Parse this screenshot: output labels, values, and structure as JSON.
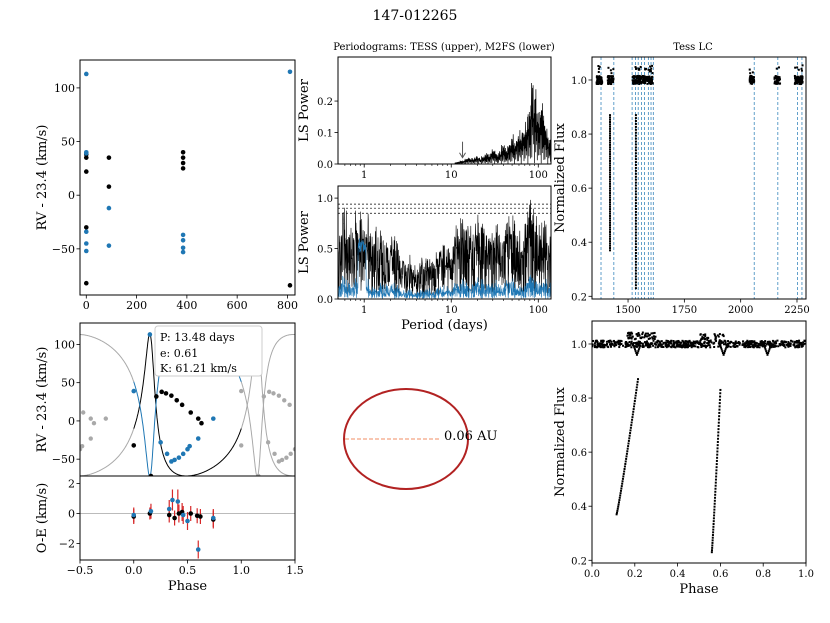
{
  "figure": {
    "title": "147-012265",
    "periodogram_title": "Periodograms: TESS (upper), M2FS (lower)",
    "lc_title": "Tess LC",
    "orbit_label": "0.06 AU",
    "fit_params": [
      "P: 13.48 days",
      "e: 0.61",
      "K: 61.21 km/s"
    ]
  },
  "colors": {
    "rv_black": "#000000",
    "rv_blue": "#1f77b4",
    "model_grey": "#a9a9a9",
    "errorbar_red": "#d62728",
    "orbit_red": "#b22222",
    "orbit_line": "#f4a582",
    "vline_blue": "#1f77b4",
    "hline_grey": "#bbbbbb"
  },
  "chart_data": [
    {
      "id": "rv_time",
      "type": "scatter",
      "xlabel": "",
      "ylabel": "RV - 23.4 (km/s)",
      "xlim": [
        -25,
        830
      ],
      "ylim": [
        -93,
        126
      ],
      "xticks": [
        0,
        200,
        400,
        600,
        800
      ],
      "yticks": [
        -50,
        0,
        50,
        100
      ],
      "series": [
        {
          "name": "black",
          "color": "#000000",
          "points": [
            [
              0,
              -82
            ],
            [
              0,
              -30
            ],
            [
              0,
              22
            ],
            [
              0,
              35
            ],
            [
              0,
              38
            ],
            [
              90,
              35
            ],
            [
              90,
              8
            ],
            [
              385,
              25
            ],
            [
              385,
              30
            ],
            [
              385,
              35
            ],
            [
              385,
              40
            ],
            [
              810,
              -84
            ]
          ]
        },
        {
          "name": "blue",
          "color": "#1f77b4",
          "points": [
            [
              0,
              113
            ],
            [
              0,
              40
            ],
            [
              0,
              39
            ],
            [
              0,
              -34
            ],
            [
              0,
              -45
            ],
            [
              0,
              -52
            ],
            [
              90,
              -12
            ],
            [
              90,
              -47
            ],
            [
              385,
              -37
            ],
            [
              385,
              -42
            ],
            [
              385,
              -49
            ],
            [
              385,
              -53
            ],
            [
              810,
              115
            ]
          ]
        }
      ]
    },
    {
      "id": "rv_phase",
      "type": "line",
      "xlabel": "",
      "ylabel": "RV - 23.4 (km/s)",
      "xlim": [
        -0.5,
        1.5
      ],
      "ylim": [
        -72,
        128
      ],
      "xticks": [],
      "yticks": [
        -50,
        0,
        50,
        100
      ],
      "model": {
        "P_days": 13.48,
        "e": 0.61,
        "K_kms": 61.21,
        "omega_deg": 20,
        "phase_offset": 0.16
      },
      "series": [
        {
          "name": "black",
          "color": "#000000",
          "points": [
            [
              0.0,
              -32
            ],
            [
              0.16,
              -72
            ],
            [
              0.21,
              32
            ],
            [
              0.26,
              38
            ],
            [
              0.3,
              36
            ],
            [
              0.35,
              33
            ],
            [
              0.4,
              27
            ],
            [
              0.45,
              21
            ],
            [
              0.53,
              11
            ],
            [
              0.6,
              3
            ],
            [
              0.63,
              -3
            ]
          ]
        },
        {
          "name": "blue",
          "color": "#1f77b4",
          "points": [
            [
              0.0,
              39
            ],
            [
              0.15,
              113
            ],
            [
              0.25,
              -28
            ],
            [
              0.31,
              -43
            ],
            [
              0.35,
              -53
            ],
            [
              0.38,
              -51
            ],
            [
              0.42,
              -48
            ],
            [
              0.46,
              -43
            ],
            [
              0.5,
              -37
            ],
            [
              0.52,
              -33
            ],
            [
              0.6,
              -23
            ],
            [
              0.74,
              3
            ]
          ]
        }
      ]
    },
    {
      "id": "oc_residuals",
      "type": "scatter",
      "xlabel": "Phase",
      "ylabel": "O-E (km/s)",
      "xlim": [
        -0.5,
        1.5
      ],
      "ylim": [
        -3.1,
        2.5
      ],
      "xticks": [
        -0.5,
        0.0,
        0.5,
        1.0,
        1.5
      ],
      "yticks": [
        -2,
        0,
        2
      ],
      "series": [
        {
          "name": "black",
          "color": "#000000",
          "points": [
            [
              0.0,
              -0.2,
              0.5
            ],
            [
              0.15,
              0.0,
              0.4
            ],
            [
              0.33,
              -0.1,
              0.5
            ],
            [
              0.38,
              -0.3,
              0.5
            ],
            [
              0.42,
              0.0,
              0.6
            ],
            [
              0.45,
              0.1,
              0.6
            ],
            [
              0.53,
              0.0,
              0.5
            ],
            [
              0.59,
              -0.15,
              0.5
            ],
            [
              0.62,
              -0.2,
              0.5
            ],
            [
              0.74,
              -0.4,
              0.6
            ]
          ]
        },
        {
          "name": "blue",
          "color": "#1f77b4",
          "points": [
            [
              0.0,
              -0.1,
              0.5
            ],
            [
              0.16,
              0.15,
              0.5
            ],
            [
              0.33,
              0.3,
              0.6
            ],
            [
              0.36,
              0.9,
              0.7
            ],
            [
              0.41,
              0.8,
              0.8
            ],
            [
              0.46,
              -0.1,
              0.6
            ],
            [
              0.5,
              -0.5,
              0.6
            ],
            [
              0.6,
              -2.4,
              0.6
            ],
            [
              0.74,
              -0.3,
              0.6
            ]
          ]
        }
      ]
    },
    {
      "id": "tess_periodogram",
      "type": "line",
      "xlabel": "",
      "ylabel": "LS Power",
      "xscale": "log",
      "xlim": [
        0.5,
        140
      ],
      "ylim": [
        0,
        0.34
      ],
      "xticks": [
        1,
        10,
        100
      ],
      "xticklabels": [
        "1",
        "10",
        "100"
      ],
      "yticks": [
        0.0,
        0.1,
        0.2
      ],
      "arrow_at_period": 13.48,
      "peaks": [
        [
          12,
          0.005
        ],
        [
          13.5,
          0.012
        ],
        [
          16,
          0.025
        ],
        [
          20,
          0.03
        ],
        [
          25,
          0.04
        ],
        [
          30,
          0.05
        ],
        [
          40,
          0.07
        ],
        [
          50,
          0.1
        ],
        [
          60,
          0.12
        ],
        [
          70,
          0.15
        ],
        [
          80,
          0.22
        ],
        [
          88,
          0.32
        ],
        [
          95,
          0.2
        ],
        [
          105,
          0.25
        ],
        [
          115,
          0.18
        ],
        [
          125,
          0.12
        ]
      ]
    },
    {
      "id": "m2fs_periodogram",
      "type": "line",
      "xlabel": "Period (days)",
      "ylabel": "LS Power",
      "xscale": "log",
      "xlim": [
        0.5,
        140
      ],
      "ylim": [
        0,
        1.12
      ],
      "xticks": [
        1,
        10,
        100
      ],
      "xticklabels": [
        "1",
        "10",
        "100"
      ],
      "yticks": [
        0.0,
        0.5,
        1.0
      ],
      "fap_lines": [
        0.85,
        0.9,
        0.94
      ],
      "peaks": [
        [
          0.6,
          0.95
        ],
        [
          0.8,
          0.94
        ],
        [
          0.95,
          0.9
        ],
        [
          1.0,
          0.92
        ],
        [
          1.3,
          0.85
        ],
        [
          2.0,
          0.72
        ],
        [
          3,
          0.5
        ],
        [
          5,
          0.45
        ],
        [
          8,
          0.6
        ],
        [
          13.5,
          0.9
        ],
        [
          20,
          0.88
        ],
        [
          30,
          0.82
        ],
        [
          50,
          0.9
        ],
        [
          80,
          1.0
        ],
        [
          110,
          0.85
        ]
      ]
    },
    {
      "id": "tess_lc",
      "type": "scatter",
      "xlabel": "",
      "ylabel": "Normalized Flux",
      "xlim": [
        1340,
        2290
      ],
      "ylim": [
        0.19,
        1.085
      ],
      "xticks": [
        1500,
        1750,
        2000,
        2250
      ],
      "yticks": [
        0.2,
        0.4,
        0.6,
        0.8,
        1.0
      ],
      "sectors": [
        [
          1360,
          1385
        ],
        [
          1410,
          1435
        ],
        [
          1520,
          1560
        ],
        [
          1565,
          1610
        ],
        [
          2040,
          2060
        ],
        [
          2150,
          2175
        ],
        [
          2240,
          2275
        ]
      ],
      "dips": [
        [
          1420,
          0.37
        ],
        [
          1535,
          0.23
        ]
      ],
      "vlines": [
        1380,
        1437,
        1518,
        1533,
        1545,
        1560,
        1573,
        1590,
        1602,
        1612,
        2060,
        2165,
        2252,
        2272
      ]
    },
    {
      "id": "phased_lc",
      "type": "scatter",
      "xlabel": "Phase",
      "ylabel": "Normalized Flux",
      "xlim": [
        0,
        1
      ],
      "ylim": [
        0.19,
        1.085
      ],
      "xticks": [
        0.0,
        0.2,
        0.4,
        0.6,
        0.8,
        1.0
      ],
      "yticks": [
        0.2,
        0.4,
        0.6,
        0.8,
        1.0
      ],
      "dips": [
        [
          0.115,
          0.37,
          0.215,
          0.87
        ],
        [
          0.56,
          0.23,
          0.6,
          0.83
        ]
      ]
    },
    {
      "id": "orbit",
      "type": "line",
      "semi_major_axis_au": 0.06,
      "eccentricity": 0.61
    }
  ]
}
